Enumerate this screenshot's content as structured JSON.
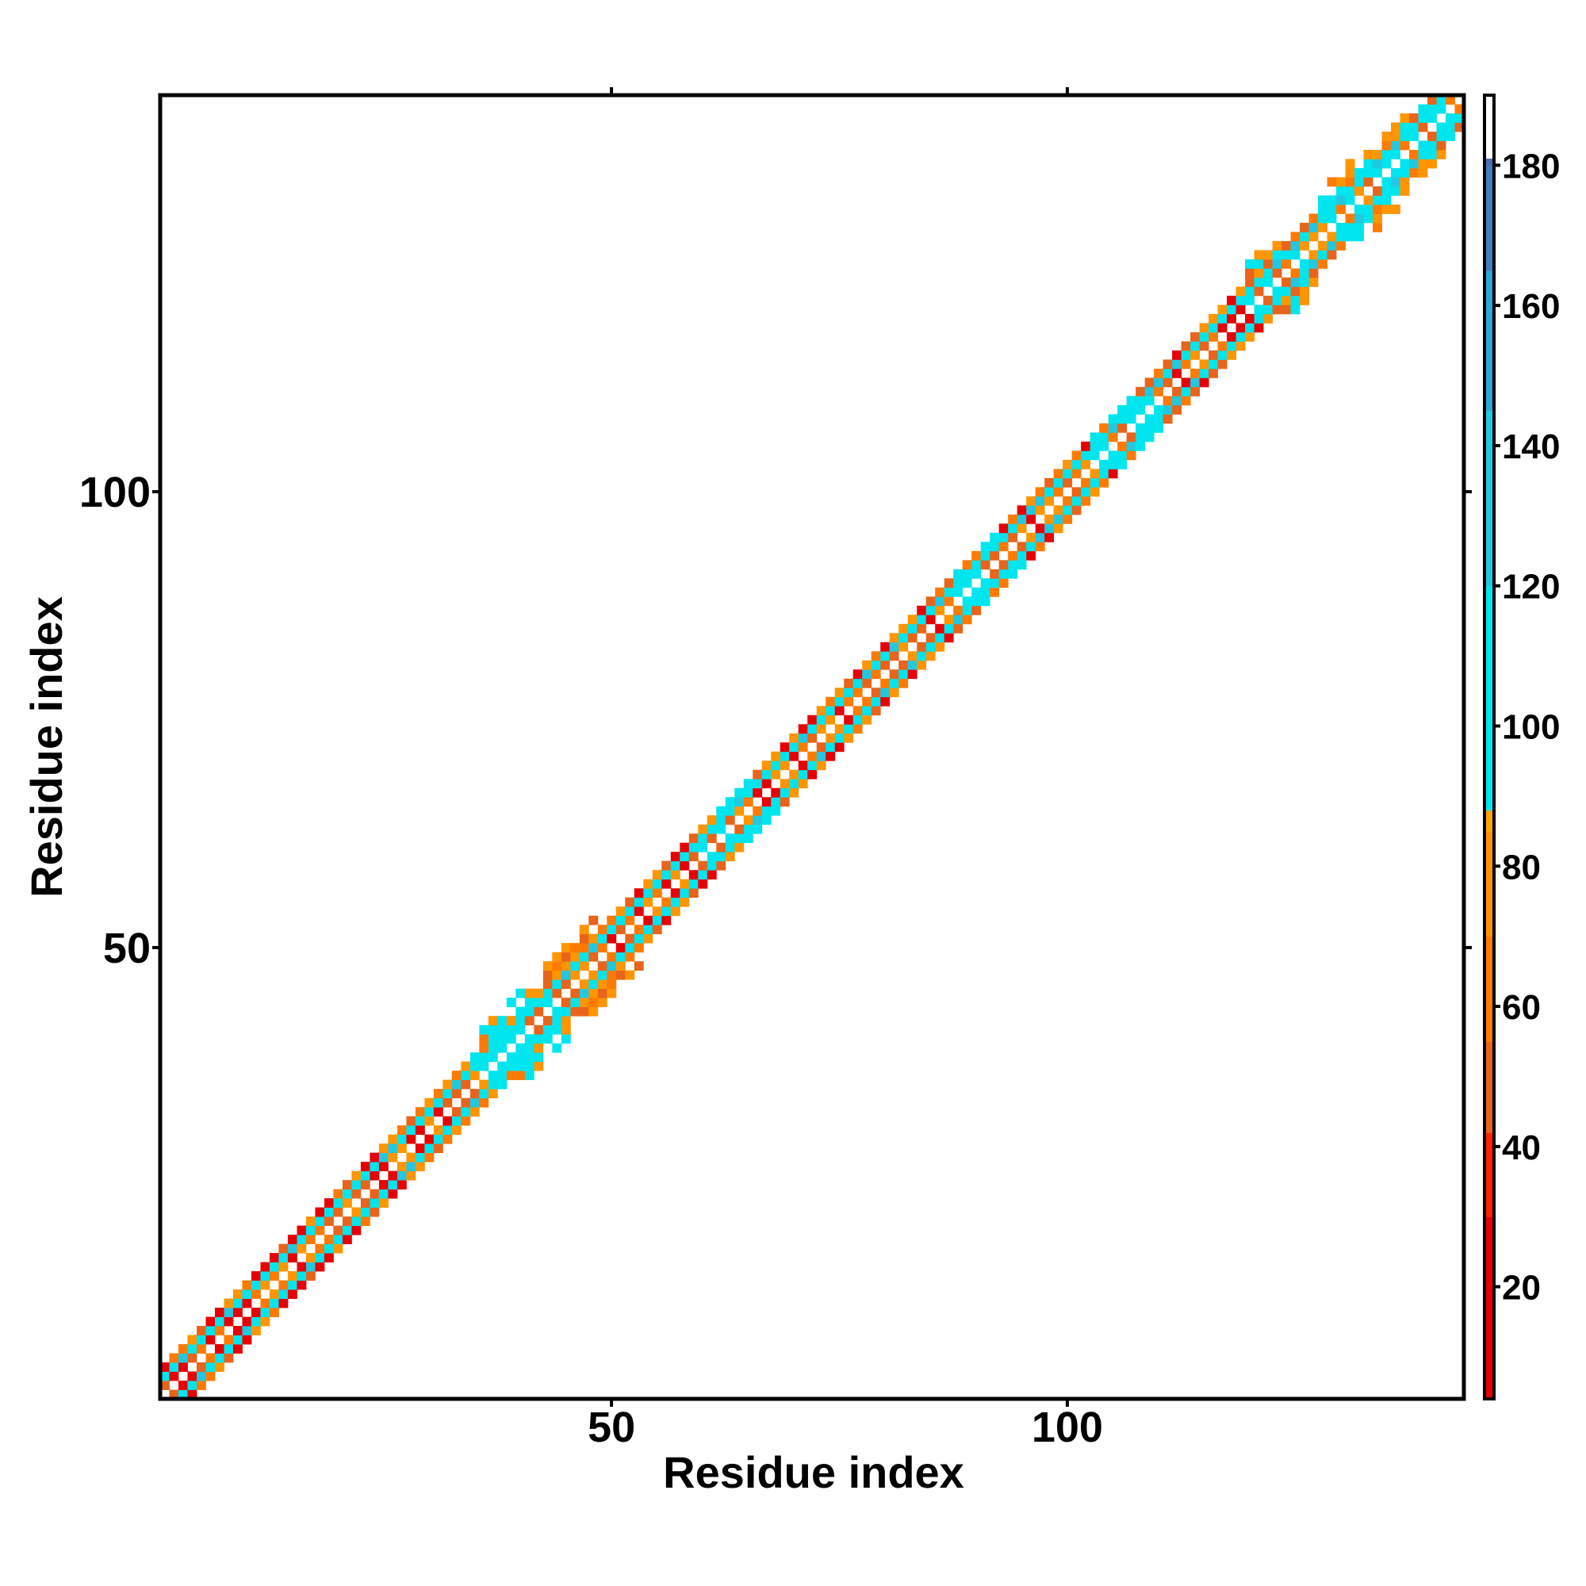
{
  "chart_data": {
    "type": "heatmap",
    "title": "",
    "xlabel": "Residue index",
    "ylabel": "Residue index",
    "xlim": [
      1,
      143
    ],
    "ylim": [
      1,
      143
    ],
    "x_ticks": [
      50,
      100
    ],
    "y_ticks": [
      50,
      100
    ],
    "grid": false,
    "legend": "colorbar-right",
    "colorbar": {
      "range": [
        4,
        190
      ],
      "ticks": [
        20,
        40,
        60,
        80,
        100,
        120,
        140,
        160,
        180
      ],
      "stops": [
        {
          "value": 4,
          "color": "#e60000"
        },
        {
          "value": 30,
          "color": "#ff2200"
        },
        {
          "value": 42,
          "color": "#e8641a"
        },
        {
          "value": 55,
          "color": "#ff7a00"
        },
        {
          "value": 70,
          "color": "#ff9500"
        },
        {
          "value": 85,
          "color": "#ffa500"
        },
        {
          "value": 88,
          "color": "#00e5ee"
        },
        {
          "value": 120,
          "color": "#22c8e0"
        },
        {
          "value": 145,
          "color": "#2ba8d8"
        },
        {
          "value": 165,
          "color": "#3d7fbf"
        },
        {
          "value": 180,
          "color": "#4a6fb0"
        },
        {
          "value": 181,
          "color": "#ffffff"
        },
        {
          "value": 190,
          "color": "#ffffff"
        }
      ]
    },
    "matrix_description": "Symmetric contact map; non-zero cells lie within a band |i-j|<=4 of the diagonal, with wider bands near residues 35-48 and 120-143.",
    "n_residues": 143
  }
}
